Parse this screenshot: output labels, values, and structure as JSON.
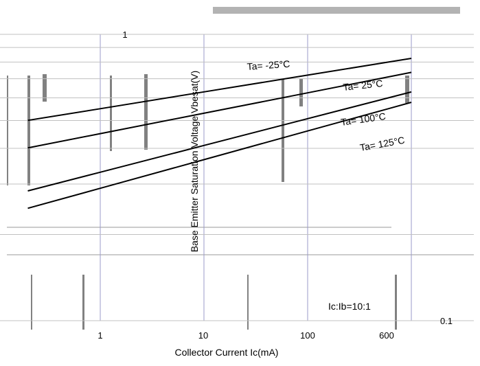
{
  "chart_data": {
    "type": "line",
    "title": "",
    "xlabel": "Collector Current Ic(mA)",
    "ylabel": "Base Emitter Saturation Voltage Vbesat(V)",
    "x_ticks": [
      "1",
      "10",
      "100",
      "600"
    ],
    "y_ticks": [
      "0.1",
      "1"
    ],
    "xlim": [
      0.1,
      1000
    ],
    "ylim": [
      0.1,
      1.0
    ],
    "x_scale": "log",
    "y_scale": "log",
    "condition": "Ic:Ib=10:1",
    "series": [
      {
        "name": "Ta= -25°C",
        "x": [
          1,
          10,
          100,
          600
        ],
        "y": [
          0.55,
          0.63,
          0.72,
          0.8
        ]
      },
      {
        "name": "Ta= 25°C",
        "x": [
          1,
          10,
          100,
          600
        ],
        "y": [
          0.45,
          0.53,
          0.63,
          0.71
        ]
      },
      {
        "name": "Ta= 100°C",
        "x": [
          1,
          10,
          100,
          600
        ],
        "y": [
          0.33,
          0.41,
          0.51,
          0.6
        ]
      },
      {
        "name": "Ta= 125°C",
        "x": [
          1,
          10,
          100,
          600
        ],
        "y": [
          0.29,
          0.36,
          0.46,
          0.55
        ]
      }
    ]
  }
}
